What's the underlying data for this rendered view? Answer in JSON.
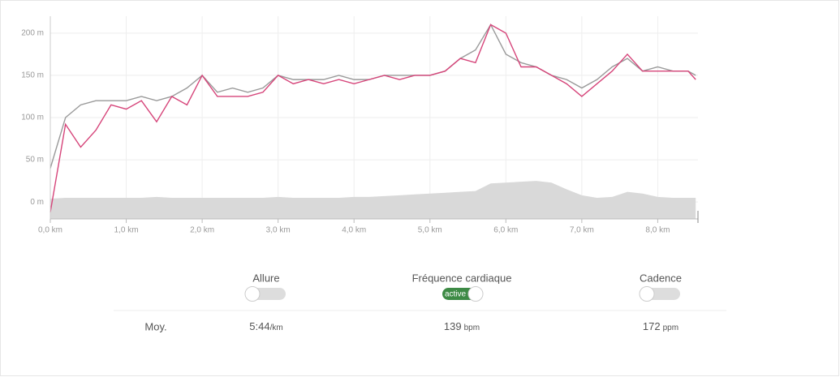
{
  "chart_data": {
    "type": "line",
    "x": [
      0,
      0.2,
      0.4,
      0.6,
      0.8,
      1.0,
      1.2,
      1.4,
      1.6,
      1.8,
      2.0,
      2.2,
      2.4,
      2.6,
      2.8,
      3.0,
      3.2,
      3.4,
      3.6,
      3.8,
      4.0,
      4.2,
      4.4,
      4.6,
      4.8,
      5.0,
      5.2,
      5.4,
      5.6,
      5.8,
      6.0,
      6.2,
      6.4,
      6.6,
      6.8,
      7.0,
      7.2,
      7.4,
      7.6,
      7.8,
      8.0,
      8.2,
      8.4,
      8.5
    ],
    "series": [
      {
        "color": "#d9d9d9",
        "kind": "area",
        "values": [
          4,
          5,
          5,
          5,
          5,
          5,
          5,
          6,
          5,
          5,
          5,
          5,
          5,
          5,
          5,
          6,
          5,
          5,
          5,
          5,
          6,
          6,
          7,
          8,
          9,
          10,
          11,
          12,
          13,
          22,
          23,
          24,
          25,
          23,
          15,
          8,
          5,
          6,
          12,
          10,
          6,
          5,
          5,
          5
        ]
      },
      {
        "color": "#9a9a9a",
        "kind": "line",
        "values": [
          40,
          100,
          115,
          120,
          120,
          120,
          125,
          120,
          125,
          135,
          150,
          130,
          135,
          130,
          135,
          150,
          145,
          145,
          145,
          150,
          145,
          145,
          150,
          150,
          150,
          150,
          155,
          170,
          180,
          210,
          175,
          165,
          160,
          150,
          145,
          135,
          145,
          160,
          170,
          155,
          160,
          155,
          155,
          150
        ]
      },
      {
        "color": "#d6457a",
        "kind": "line",
        "values": [
          -12,
          92,
          65,
          85,
          115,
          110,
          120,
          95,
          125,
          115,
          150,
          125,
          125,
          125,
          130,
          150,
          140,
          145,
          140,
          145,
          140,
          145,
          150,
          145,
          150,
          150,
          155,
          170,
          165,
          210,
          200,
          160,
          160,
          150,
          140,
          125,
          140,
          155,
          175,
          155,
          155,
          155,
          155,
          145
        ]
      }
    ],
    "xlim": [
      0,
      8.53
    ],
    "xticks": [
      {
        "value": 0,
        "label": "0,0 km"
      },
      {
        "value": 1,
        "label": "1,0 km"
      },
      {
        "value": 2,
        "label": "2,0 km"
      },
      {
        "value": 3,
        "label": "3,0 km"
      },
      {
        "value": 4,
        "label": "4,0 km"
      },
      {
        "value": 5,
        "label": "5,0 km"
      },
      {
        "value": 6,
        "label": "6,0 km"
      },
      {
        "value": 7,
        "label": "7,0 km"
      },
      {
        "value": 8,
        "label": "8,0 km"
      }
    ],
    "ylim": [
      -20,
      220
    ],
    "yticks": [
      {
        "value": 0,
        "label": "0 m"
      },
      {
        "value": 50,
        "label": "50 m"
      },
      {
        "value": 100,
        "label": "100 m"
      },
      {
        "value": 150,
        "label": "150 m"
      },
      {
        "value": 200,
        "label": "200 m"
      }
    ],
    "grid": true
  },
  "toggles": [
    {
      "label": "Allure",
      "active": false
    },
    {
      "label": "Fréquence cardiaque",
      "active": true,
      "badge": "active"
    },
    {
      "label": "Cadence",
      "active": false
    }
  ],
  "stats": {
    "label": "Moy.",
    "items": [
      {
        "value": "5:44",
        "unit": "/km"
      },
      {
        "value": "139",
        "unit": "bpm"
      },
      {
        "value": "172",
        "unit": "ppm"
      }
    ]
  }
}
